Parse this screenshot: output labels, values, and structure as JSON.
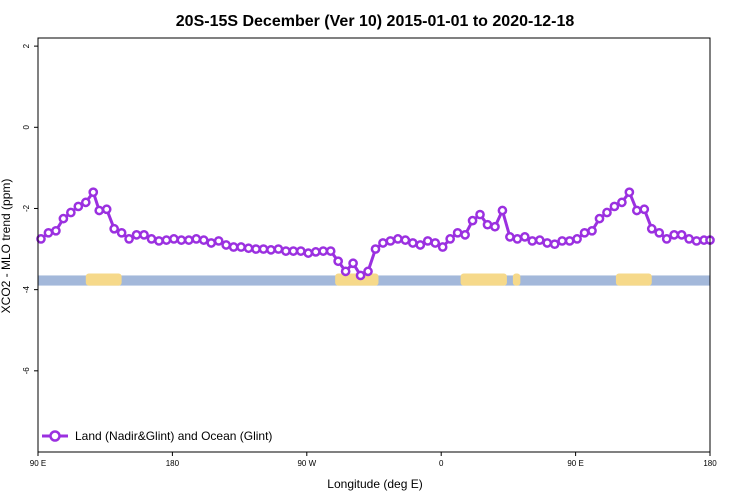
{
  "chart_data": {
    "type": "line",
    "title": "20S-15S December (Ver 10)   2015-01-01 to 2020-12-18",
    "xlabel": "Longitude (deg E)",
    "ylabel": "XCO2 - MLO trend (ppm)",
    "xlim": [
      90,
      540
    ],
    "ylim": [
      -8,
      2.2
    ],
    "x_ticks": [
      {
        "value": 90,
        "label": "90 E"
      },
      {
        "value": 180,
        "label": "180"
      },
      {
        "value": 270,
        "label": "90 W"
      },
      {
        "value": 360,
        "label": "0"
      },
      {
        "value": 450,
        "label": "90 E"
      },
      {
        "value": 540,
        "label": "180"
      }
    ],
    "y_ticks": [
      {
        "value": 2,
        "label": "2"
      },
      {
        "value": 0,
        "label": "0"
      },
      {
        "value": -2,
        "label": "-2"
      },
      {
        "value": -4,
        "label": "-4"
      },
      {
        "value": -6,
        "label": "-6"
      }
    ],
    "grid": false,
    "legend": {
      "position": "bottom-left",
      "entries": [
        "Land (Nadir&Glint) and Ocean (Glint)"
      ]
    },
    "series": [
      {
        "name": "Land (Nadir&Glint) and Ocean (Glint)",
        "color": "#9b30e0",
        "x": [
          92,
          97,
          102,
          107,
          112,
          117,
          122,
          127,
          131,
          136,
          141,
          146,
          151,
          156,
          161,
          166,
          171,
          176,
          181,
          186,
          191,
          196,
          201,
          206,
          211,
          216,
          221,
          226,
          231,
          236,
          241,
          246,
          251,
          256,
          261,
          266,
          271,
          276,
          281,
          286,
          291,
          296,
          301,
          306,
          311,
          316,
          321,
          326,
          331,
          336,
          341,
          346,
          351,
          356,
          361,
          366,
          371,
          376,
          381,
          386,
          391,
          396,
          401,
          406,
          411,
          416,
          421,
          426,
          431,
          436,
          441,
          446,
          451,
          456,
          461,
          466,
          471,
          476,
          481,
          486,
          491,
          496,
          501,
          506,
          511,
          516,
          521,
          526,
          531,
          536,
          540
        ],
        "y": [
          -2.75,
          -2.6,
          -2.55,
          -2.25,
          -2.1,
          -1.95,
          -1.85,
          -1.6,
          -2.05,
          -2.02,
          -2.5,
          -2.6,
          -2.75,
          -2.65,
          -2.65,
          -2.75,
          -2.8,
          -2.78,
          -2.75,
          -2.78,
          -2.78,
          -2.75,
          -2.78,
          -2.85,
          -2.8,
          -2.9,
          -2.95,
          -2.95,
          -2.98,
          -3.0,
          -3.0,
          -3.02,
          -3.0,
          -3.05,
          -3.05,
          -3.05,
          -3.1,
          -3.07,
          -3.05,
          -3.05,
          -3.3,
          -3.55,
          -3.35,
          -3.65,
          -3.55,
          -3.0,
          -2.85,
          -2.8,
          -2.75,
          -2.78,
          -2.85,
          -2.9,
          -2.8,
          -2.85,
          -2.95,
          -2.75,
          -2.6,
          -2.65,
          -2.3,
          -2.15,
          -2.4,
          -2.45,
          -2.05,
          -2.7,
          -2.75,
          -2.7,
          -2.8,
          -2.78,
          -2.85,
          -2.88,
          -2.8,
          -2.8,
          -2.75,
          -2.6,
          -2.55,
          -2.25,
          -2.1,
          -1.95,
          -1.85,
          -1.6,
          -2.05,
          -2.02,
          -2.5,
          -2.6,
          -2.75,
          -2.65,
          -2.65,
          -2.75,
          -2.8,
          -2.78,
          -2.78
        ]
      }
    ],
    "surface_band": {
      "y_range": [
        -3.9,
        -3.65
      ],
      "ocean_color": "#a3b8da",
      "land_color": "#f6d98a",
      "land_segments": [
        [
          122,
          146
        ],
        [
          289,
          318
        ],
        [
          373,
          404
        ],
        [
          408,
          413
        ],
        [
          477,
          501
        ]
      ]
    }
  }
}
